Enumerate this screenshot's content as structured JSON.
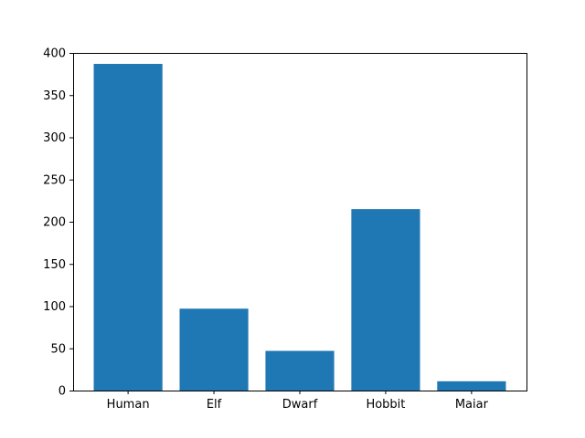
{
  "chart_data": {
    "type": "bar",
    "categories": [
      "Human",
      "Elf",
      "Dwarf",
      "Hobbit",
      "Maiar"
    ],
    "values": [
      387,
      97,
      47,
      215,
      11
    ],
    "title": "",
    "xlabel": "",
    "ylabel": "",
    "ylim": [
      0,
      400
    ],
    "yticks": [
      "0",
      "50",
      "100",
      "150",
      "200",
      "250",
      "300",
      "350",
      "400"
    ],
    "bar_color": "#1f77b4",
    "grid": false,
    "legend": "none"
  }
}
